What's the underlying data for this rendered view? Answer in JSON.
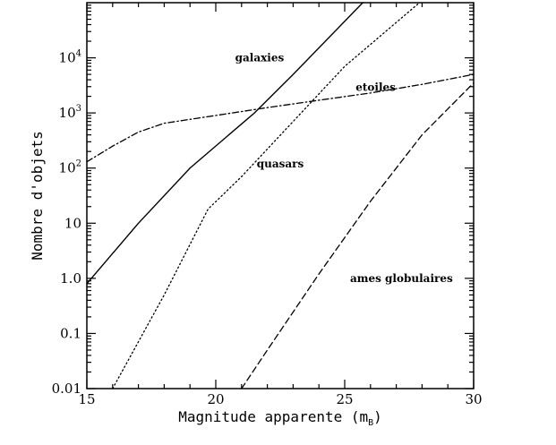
{
  "chart_data": {
    "type": "line",
    "title": "",
    "xlabel": "Magnitude apparente (m",
    "xlabel_subscript": "B",
    "xlabel_close": ")",
    "ylabel": "Nombre d'objets",
    "xlim": [
      15,
      30
    ],
    "ylim": [
      0.01,
      100000
    ],
    "yscale": "log",
    "grid": false,
    "legend": "none (labels placed next to curves)",
    "x_ticks": [
      {
        "value": 15,
        "label": "15"
      },
      {
        "value": 20,
        "label": "20"
      },
      {
        "value": 25,
        "label": "25"
      },
      {
        "value": 30,
        "label": "30"
      }
    ],
    "y_ticks": [
      {
        "value": 0.01,
        "label": "0.01"
      },
      {
        "value": 0.1,
        "label": "0.1"
      },
      {
        "value": 1,
        "label": "1.0"
      },
      {
        "value": 10,
        "label": "10"
      },
      {
        "value": 100,
        "label": "10",
        "sup": "2"
      },
      {
        "value": 1000,
        "label": "10",
        "sup": "3"
      },
      {
        "value": 10000,
        "label": "10",
        "sup": "4"
      }
    ],
    "series": [
      {
        "name": "galaxies",
        "style": "solid",
        "color": "#000000",
        "x": [
          15,
          17,
          19,
          21.5,
          23,
          25.7
        ],
        "y": [
          0.8,
          10,
          100,
          1000,
          5000,
          100000
        ],
        "label_at": [
          21.7,
          10000
        ]
      },
      {
        "name": "etoiles",
        "style": "dashdot",
        "color": "#000000",
        "x": [
          15,
          16,
          17,
          18,
          20,
          22,
          24,
          26,
          28,
          30
        ],
        "y": [
          130,
          250,
          450,
          650,
          900,
          1250,
          1700,
          2300,
          3300,
          5000
        ],
        "label_at": [
          26.2,
          2900
        ]
      },
      {
        "name": "quasars",
        "style": "dotted",
        "color": "#000000",
        "x": [
          16,
          18,
          19.7,
          21,
          23,
          25,
          27.9
        ],
        "y": [
          0.01,
          0.5,
          18,
          70,
          700,
          7000,
          100000
        ],
        "label_at": [
          22.5,
          120
        ]
      },
      {
        "name": "ames globulaires",
        "style": "dashed",
        "color": "#000000",
        "x": [
          21,
          22,
          24,
          26,
          28,
          30
        ],
        "y": [
          0.01,
          0.05,
          1.2,
          25,
          400,
          3500
        ],
        "label_at": [
          27.2,
          1
        ]
      }
    ]
  }
}
